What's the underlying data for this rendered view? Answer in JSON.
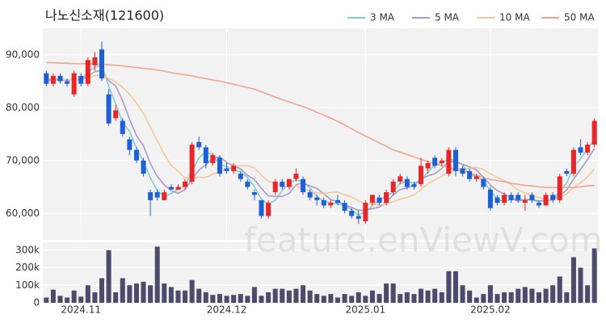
{
  "chart_data": {
    "type": "candlestick",
    "title": "나노신소재(121600)",
    "watermark": "feature.enViewV.com",
    "legend": "top-right",
    "grid": true,
    "up_color": "#e8262a",
    "down_color": "#1f5fd6",
    "categories": [
      null,
      null,
      null,
      null,
      null,
      "2024.11",
      null,
      null,
      null,
      null,
      null,
      null,
      null,
      null,
      null,
      null,
      null,
      null,
      null,
      null,
      null,
      null,
      null,
      null,
      null,
      null,
      "2024.12",
      null,
      null,
      null,
      null,
      null,
      null,
      null,
      null,
      null,
      null,
      null,
      null,
      null,
      null,
      null,
      null,
      null,
      null,
      null,
      "2025.01",
      null,
      null,
      null,
      null,
      null,
      null,
      null,
      null,
      null,
      null,
      null,
      null,
      null,
      null,
      null,
      null,
      null,
      "2025.02",
      null,
      null,
      null,
      null,
      null,
      null,
      null,
      null,
      null,
      null,
      null,
      null,
      null,
      null,
      null
    ],
    "open": [
      86500,
      84500,
      86000,
      85000,
      82500,
      86000,
      84500,
      88000,
      91000,
      82500,
      78000,
      77500,
      74000,
      72000,
      70000,
      64000,
      64000,
      62500,
      65000,
      64500,
      65000,
      66000,
      73500,
      72500,
      69500,
      70500,
      68500,
      68000,
      67500,
      66000,
      64000,
      62500,
      59500,
      64000,
      66000,
      65000,
      66500,
      66500,
      64000,
      63000,
      62500,
      61500,
      62500,
      62000,
      60500,
      59500,
      58500,
      62000,
      63000,
      62000,
      64000,
      66000,
      66500,
      65500,
      65500,
      68500,
      70500,
      69500,
      67500,
      72000,
      68500,
      68000,
      66500,
      66500,
      64500,
      63000,
      62000,
      63500,
      63500,
      62000,
      63500,
      62000,
      61500,
      63500,
      62500,
      68000,
      67500,
      72500,
      71500,
      73000
    ],
    "high": [
      87000,
      86500,
      86500,
      85500,
      87000,
      86500,
      89500,
      90500,
      92500,
      83500,
      80500,
      78000,
      74500,
      72500,
      70500,
      64500,
      64500,
      64500,
      65500,
      65500,
      66500,
      73500,
      74500,
      73000,
      71500,
      71000,
      69500,
      69500,
      68000,
      66500,
      64500,
      62500,
      62500,
      66500,
      66500,
      66500,
      68500,
      67000,
      64500,
      63500,
      63000,
      62500,
      63500,
      62500,
      61000,
      60500,
      62500,
      63500,
      63500,
      64500,
      66500,
      67500,
      67000,
      66000,
      70500,
      70000,
      71000,
      70500,
      72500,
      72500,
      69000,
      68500,
      67500,
      67000,
      65000,
      63500,
      64000,
      64000,
      64000,
      63500,
      64000,
      62500,
      64000,
      64000,
      67500,
      68500,
      72500,
      74000,
      73500,
      78000
    ],
    "low": [
      84000,
      84000,
      84500,
      84000,
      82000,
      84000,
      84000,
      87000,
      85000,
      76500,
      77500,
      74500,
      71000,
      69500,
      67000,
      59500,
      62500,
      62500,
      64500,
      64500,
      64500,
      65500,
      72000,
      68500,
      69000,
      67000,
      67500,
      67500,
      66000,
      64500,
      62500,
      59000,
      59000,
      63500,
      64500,
      64500,
      66000,
      63500,
      62500,
      61500,
      61000,
      61000,
      61500,
      60000,
      59000,
      58000,
      58000,
      61500,
      61500,
      61500,
      63500,
      65500,
      64500,
      64500,
      65000,
      67500,
      68500,
      69000,
      67000,
      67000,
      67000,
      66000,
      66000,
      64500,
      60500,
      61500,
      61500,
      62000,
      62000,
      60500,
      62000,
      61000,
      61500,
      62000,
      62000,
      67000,
      67000,
      71000,
      71000,
      72500
    ],
    "close": [
      84500,
      86000,
      85000,
      84500,
      86500,
      84500,
      89000,
      89500,
      85500,
      77000,
      79500,
      75000,
      72000,
      70000,
      67500,
      62500,
      63000,
      64000,
      64500,
      65000,
      66000,
      73000,
      72500,
      69500,
      71000,
      67500,
      68000,
      69000,
      66500,
      65000,
      63500,
      59500,
      62000,
      66000,
      65000,
      66500,
      67500,
      64000,
      63000,
      62500,
      61500,
      62000,
      62000,
      60500,
      59500,
      59000,
      62000,
      63500,
      62000,
      64000,
      66000,
      67000,
      65000,
      65000,
      69000,
      69500,
      69000,
      70000,
      72000,
      68000,
      67500,
      66500,
      67000,
      65000,
      61000,
      62000,
      63500,
      62500,
      62500,
      62500,
      62500,
      61500,
      63500,
      62500,
      67000,
      67500,
      72000,
      71500,
      73000,
      77500
    ],
    "ylim": [
      55000,
      95000
    ],
    "yticks": [
      {
        "value": 60000,
        "label": "60,000"
      },
      {
        "value": 70000,
        "label": "70,000"
      },
      {
        "value": 80000,
        "label": "80,000"
      },
      {
        "value": 90000,
        "label": "90,000"
      }
    ],
    "moving_averages": [
      {
        "name": "3 MA",
        "color": "#7fcfcf",
        "values": [
          85000,
          85300,
          85200,
          85200,
          85300,
          85200,
          86700,
          87700,
          88000,
          84000,
          80700,
          77200,
          75500,
          72300,
          69800,
          66700,
          64300,
          63200,
          63800,
          64500,
          65200,
          68000,
          70500,
          71700,
          71000,
          69300,
          68800,
          68200,
          67800,
          66800,
          65000,
          62700,
          61700,
          62500,
          64300,
          65800,
          66300,
          66000,
          64800,
          63200,
          62300,
          62000,
          61800,
          61500,
          60700,
          59700,
          60200,
          61500,
          62500,
          63200,
          64000,
          65700,
          66000,
          65700,
          66300,
          67800,
          69200,
          69500,
          70300,
          70000,
          69200,
          67300,
          67000,
          66200,
          64300,
          62700,
          62200,
          62700,
          62800,
          62500,
          62500,
          62200,
          62500,
          62500,
          64300,
          65700,
          68800,
          70300,
          72200,
          74000
        ]
      },
      {
        "name": "5 MA",
        "color": "#a99bc6",
        "values": [
          85200,
          85300,
          85300,
          85200,
          85300,
          85300,
          85900,
          86800,
          87000,
          85100,
          84100,
          81300,
          77800,
          74700,
          72800,
          69400,
          67000,
          65400,
          64300,
          63800,
          64500,
          66500,
          68200,
          69200,
          70400,
          70700,
          69600,
          69000,
          68400,
          67200,
          66400,
          64700,
          63300,
          63200,
          63200,
          63800,
          65400,
          65800,
          65200,
          64700,
          63700,
          62600,
          62200,
          61700,
          61100,
          60600,
          60600,
          60900,
          61200,
          62100,
          63500,
          64500,
          64800,
          65400,
          66400,
          67100,
          67500,
          68500,
          69900,
          69700,
          69300,
          68800,
          68200,
          66800,
          65400,
          64300,
          63700,
          62800,
          62300,
          62600,
          62700,
          62300,
          62500,
          62500,
          63400,
          64400,
          66500,
          68300,
          70200,
          72300
        ]
      },
      {
        "name": "10 MA",
        "color": "#f5c89a",
        "values": [
          85500,
          85500,
          85400,
          85300,
          85300,
          85300,
          85600,
          86000,
          86200,
          85500,
          84900,
          83800,
          82500,
          80900,
          78900,
          76300,
          73700,
          71200,
          69100,
          67900,
          66700,
          66800,
          66800,
          66800,
          67400,
          67900,
          68400,
          68900,
          69000,
          69000,
          68600,
          67200,
          66100,
          65700,
          65100,
          65200,
          65200,
          64700,
          64200,
          63900,
          63700,
          64000,
          64000,
          63500,
          63100,
          62400,
          61800,
          61700,
          61600,
          61800,
          62200,
          62700,
          63000,
          63500,
          64500,
          65600,
          66300,
          67000,
          68000,
          68400,
          68500,
          68500,
          68700,
          68300,
          67500,
          66800,
          66200,
          65400,
          64400,
          63900,
          63400,
          63000,
          62700,
          62500,
          63100,
          63700,
          64900,
          65800,
          66900,
          68400
        ]
      },
      {
        "name": "50 MA",
        "color": "#f4a393",
        "values": [
          88500,
          88500,
          88400,
          88400,
          88300,
          88300,
          88300,
          88200,
          88200,
          88100,
          88000,
          87900,
          87700,
          87600,
          87400,
          87300,
          87100,
          86900,
          86600,
          86400,
          86200,
          86000,
          85700,
          85500,
          85200,
          85000,
          84700,
          84400,
          84100,
          83800,
          83500,
          83000,
          82500,
          82000,
          81500,
          81100,
          80600,
          80200,
          79700,
          79100,
          78600,
          78000,
          77400,
          76700,
          76000,
          75300,
          74600,
          74000,
          73300,
          72700,
          72000,
          71600,
          71100,
          70700,
          70200,
          69800,
          69400,
          69000,
          68700,
          68300,
          68000,
          67600,
          67200,
          66800,
          66400,
          66200,
          66000,
          65700,
          65500,
          65300,
          65200,
          65000,
          64900,
          64900,
          64900,
          64900,
          64900,
          65000,
          65200,
          65300
        ]
      }
    ],
    "volume": {
      "color": "#4b4b6b",
      "values": [
        30000,
        75000,
        40000,
        30000,
        70000,
        35000,
        100000,
        60000,
        140000,
        300000,
        60000,
        140000,
        100000,
        110000,
        120000,
        100000,
        320000,
        110000,
        90000,
        70000,
        70000,
        130000,
        80000,
        60000,
        45000,
        50000,
        40000,
        45000,
        50000,
        40000,
        90000,
        40000,
        60000,
        80000,
        80000,
        70000,
        80000,
        100000,
        70000,
        50000,
        40000,
        50000,
        30000,
        50000,
        40000,
        60000,
        40000,
        70000,
        50000,
        110000,
        110000,
        50000,
        60000,
        50000,
        80000,
        70000,
        80000,
        60000,
        180000,
        180000,
        100000,
        70000,
        30000,
        50000,
        100000,
        50000,
        60000,
        60000,
        80000,
        90000,
        80000,
        60000,
        80000,
        100000,
        150000,
        60000,
        260000,
        200000,
        100000,
        310000
      ],
      "ylim": [
        0,
        345000
      ],
      "yticks": [
        0,
        {
          "value": 100000,
          "label": "100k"
        },
        {
          "value": 200000,
          "label": "200k"
        },
        {
          "value": 300000,
          "label": "300k"
        }
      ]
    }
  }
}
